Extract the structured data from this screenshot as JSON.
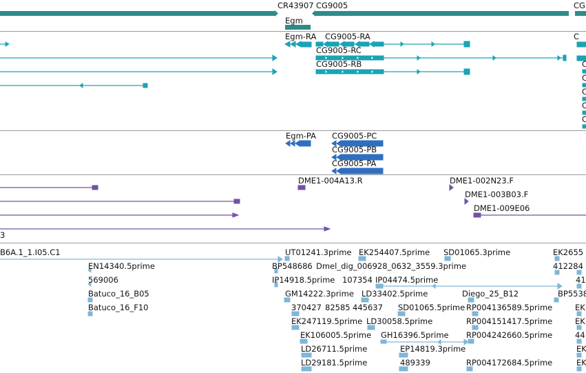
{
  "colors": {
    "gene": "#2e8b8b",
    "transcript": "#1aa3b3",
    "protein": "#2f6fc0",
    "clone": "#7152a8",
    "est": "#7fb6d9",
    "divider": "#9a9a9a"
  },
  "gene_track": {
    "labels": [
      "CR43907",
      "CG9005",
      "CG",
      "Egm"
    ]
  },
  "transcript_track": {
    "labels": [
      "Egm-RA",
      "CG9005-RA",
      "CG9005-RC",
      "CG9005-RB",
      "C",
      "C",
      "C",
      "C",
      "C",
      "C"
    ]
  },
  "protein_track": {
    "labels": [
      "Egm-PA",
      "CG9005-PC",
      "CG9005-PB",
      "CG9005-PA"
    ]
  },
  "clone_track": {
    "labels": [
      "DME1-004A13.R",
      "DME1-002N23.F",
      "DME1-003B03.F",
      "DME1-009E06",
      "3"
    ]
  },
  "est_track": {
    "labels": [
      "B6A.1_1.I05.C1",
      "UT01241.3prime",
      "EK254407.5prime",
      "SD01065.3prime",
      "EK2655",
      "EN14340.5prime",
      "BP548686",
      "Dmel_dig_006928_0632_3559.3prime",
      "412284",
      "569006",
      "IP14918.5prime",
      "107354",
      "IP04474.5prime",
      "41",
      "Batuco_16_B05",
      "GM14222.3prime",
      "LD33402.5prime",
      "Diego_25_B12",
      "BP5538",
      "Batuco_16_F10",
      "370427",
      "82585",
      "445637",
      "SD01065.5prime",
      "RP004136589.5prime",
      "EK",
      "EK247119.5prime",
      "LD30058.5prime",
      "RP004151417.5prime",
      "EK",
      "EK106005.5prime",
      "GH16396.5prime",
      "RP004242660.5prime",
      "44",
      "LD26711.5prime",
      "EP14819.3prime",
      "EK",
      "LD29181.5prime",
      "489339",
      "RP004172684.5prime",
      "EK"
    ]
  }
}
